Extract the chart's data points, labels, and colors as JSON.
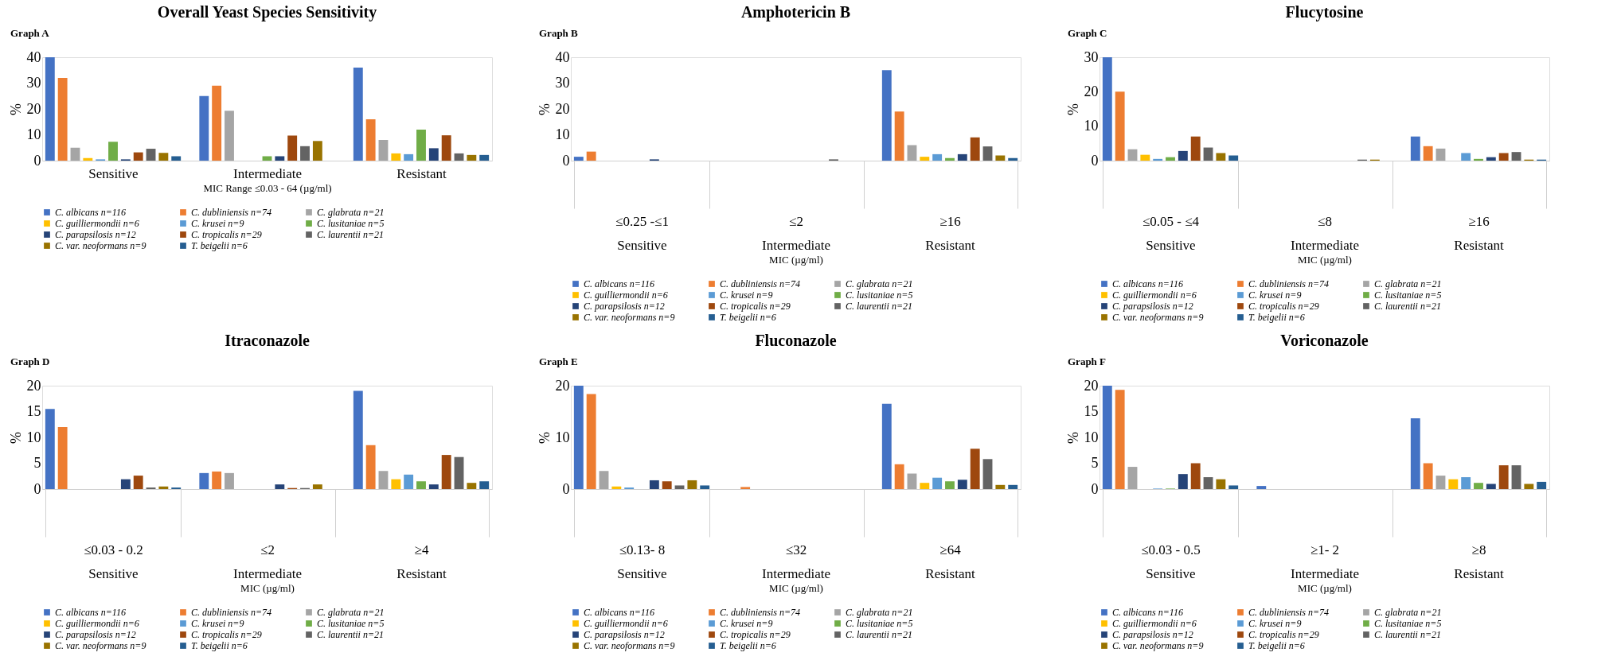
{
  "chart_data": [
    {
      "type": "bar",
      "title": "Overall Yeast Species Sensitivity",
      "annotations": [
        "Graph A"
      ],
      "xlabel": "MIC Range ≤0.03 - 64 (µg/ml)",
      "ylabel": "%",
      "categories": [
        "Sensitive",
        "Intermediate",
        "Resistant"
      ],
      "ylim": [
        0,
        40
      ],
      "yticks": [
        0,
        10,
        20,
        30,
        40
      ],
      "legend": "bottom",
      "series": [
        {
          "name": "C. albicans n=116",
          "color": "#4472c4",
          "values": [
            40,
            25,
            36
          ]
        },
        {
          "name": "C. dubliniensis n=74",
          "color": "#ed7d31",
          "values": [
            32,
            29,
            16
          ]
        },
        {
          "name": "C. glabrata n=21",
          "color": "#a5a5a5",
          "values": [
            5,
            19.3,
            8
          ]
        },
        {
          "name": "C. guilliermondii n=6",
          "color": "#ffc000",
          "values": [
            1,
            0,
            2.8
          ]
        },
        {
          "name": "C. krusei n=9",
          "color": "#5b9bd5",
          "values": [
            0.5,
            0,
            2.5
          ]
        },
        {
          "name": "C. lusitaniae n=5",
          "color": "#70ad47",
          "values": [
            7.3,
            1.7,
            12
          ]
        },
        {
          "name": "C. parapsilosis n=12",
          "color": "#264478",
          "values": [
            0.5,
            1.7,
            4.8
          ]
        },
        {
          "name": "C. tropicalis n=29",
          "color": "#9e480e",
          "values": [
            3.2,
            9.7,
            9.8
          ]
        },
        {
          "name": "C. laurentii n=21",
          "color": "#636363",
          "values": [
            4.6,
            5.6,
            2.8
          ]
        },
        {
          "name": "C. var. neoformans n=9",
          "color": "#997300",
          "values": [
            3,
            7.6,
            2.2
          ]
        },
        {
          "name": "T. beigelii n=6",
          "color": "#255e91",
          "values": [
            1.7,
            0,
            2.2
          ]
        }
      ]
    },
    {
      "type": "bar",
      "title": "Amphotericin B",
      "annotations": [
        "Graph B"
      ],
      "xlabel": "MIC (µg/ml)",
      "ylabel": "%",
      "categories": [
        "≤0.25 -≤1\nSensitive",
        "≤2\nIntermediate",
        "≥16\nResistant"
      ],
      "ylim": [
        0,
        40
      ],
      "yticks": [
        0,
        10,
        20,
        30,
        40
      ],
      "legend": "bottom",
      "series": [
        {
          "name": "C. albicans n=116",
          "color": "#4472c4",
          "values": [
            1.5,
            0,
            35
          ]
        },
        {
          "name": "C. dubliniensis n=74",
          "color": "#ed7d31",
          "values": [
            3.5,
            0,
            19
          ]
        },
        {
          "name": "C. glabrata n=21",
          "color": "#a5a5a5",
          "values": [
            0,
            0,
            6
          ]
        },
        {
          "name": "C. guilliermondii n=6",
          "color": "#ffc000",
          "values": [
            0,
            0,
            1.5
          ]
        },
        {
          "name": "C. krusei n=9",
          "color": "#5b9bd5",
          "values": [
            0,
            0,
            2.5
          ]
        },
        {
          "name": "C. lusitaniae n=5",
          "color": "#70ad47",
          "values": [
            0,
            0,
            1
          ]
        },
        {
          "name": "C. parapsilosis n=12",
          "color": "#264478",
          "values": [
            0.5,
            0,
            2.5
          ]
        },
        {
          "name": "C. tropicalis n=29",
          "color": "#9e480e",
          "values": [
            0,
            0,
            9
          ]
        },
        {
          "name": "C. laurentii n=21",
          "color": "#636363",
          "values": [
            0,
            0.5,
            5.5
          ]
        },
        {
          "name": "C. var. neoformans n=9",
          "color": "#997300",
          "values": [
            0,
            0,
            2
          ]
        },
        {
          "name": "T. beigelii n=6",
          "color": "#255e91",
          "values": [
            0,
            0,
            1
          ]
        }
      ]
    },
    {
      "type": "bar",
      "title": "Flucytosine",
      "annotations": [
        "Graph C"
      ],
      "xlabel": "MIC (µg/ml)",
      "ylabel": "%",
      "categories": [
        "≤0.05 - ≤4\nSensitive",
        "≤8\nIntermediate",
        "≥16\nResistant"
      ],
      "ylim": [
        0,
        30
      ],
      "yticks": [
        0,
        10,
        20,
        30
      ],
      "legend": "bottom",
      "series": [
        {
          "name": "C. albicans n=116",
          "color": "#4472c4",
          "values": [
            30,
            0,
            7
          ]
        },
        {
          "name": "C. dubliniensis n=74",
          "color": "#ed7d31",
          "values": [
            20,
            0,
            4.2
          ]
        },
        {
          "name": "C. glabrata n=21",
          "color": "#a5a5a5",
          "values": [
            3.3,
            0,
            3.5
          ]
        },
        {
          "name": "C. guilliermondii n=6",
          "color": "#ffc000",
          "values": [
            1.7,
            0,
            0
          ]
        },
        {
          "name": "C. krusei n=9",
          "color": "#5b9bd5",
          "values": [
            0.5,
            0,
            2.2
          ]
        },
        {
          "name": "C. lusitaniae n=5",
          "color": "#70ad47",
          "values": [
            1,
            0,
            0.5
          ]
        },
        {
          "name": "C. parapsilosis n=12",
          "color": "#264478",
          "values": [
            2.8,
            0,
            1
          ]
        },
        {
          "name": "C. tropicalis n=29",
          "color": "#9e480e",
          "values": [
            7,
            0,
            2.2
          ]
        },
        {
          "name": "C. laurentii n=21",
          "color": "#636363",
          "values": [
            3.8,
            0.3,
            2.5
          ]
        },
        {
          "name": "C. var. neoformans n=9",
          "color": "#997300",
          "values": [
            2.2,
            0.3,
            0.3
          ]
        },
        {
          "name": "T. beigelii n=6",
          "color": "#255e91",
          "values": [
            1.5,
            0,
            0.3
          ]
        }
      ]
    },
    {
      "type": "bar",
      "title": "Itraconazole",
      "annotations": [
        "Graph D"
      ],
      "xlabel": "MIC (µg/ml)",
      "ylabel": "%",
      "categories": [
        "≤0.03 - 0.2\nSensitive",
        "≤2\nIntermediate",
        "≥4\nResistant"
      ],
      "ylim": [
        0,
        20
      ],
      "yticks": [
        0,
        5,
        10,
        15,
        20
      ],
      "legend": "bottom",
      "series": [
        {
          "name": "C. albicans n=116",
          "color": "#4472c4",
          "values": [
            15.5,
            3.1,
            19
          ]
        },
        {
          "name": "C. dubliniensis n=74",
          "color": "#ed7d31",
          "values": [
            12,
            3.4,
            8.5
          ]
        },
        {
          "name": "C. glabrata n=21",
          "color": "#a5a5a5",
          "values": [
            0,
            3.1,
            3.5
          ]
        },
        {
          "name": "C. guilliermondii n=6",
          "color": "#ffc000",
          "values": [
            0,
            0,
            1.9
          ]
        },
        {
          "name": "C. krusei n=9",
          "color": "#5b9bd5",
          "values": [
            0,
            0,
            2.8
          ]
        },
        {
          "name": "C. lusitaniae n=5",
          "color": "#70ad47",
          "values": [
            0,
            0,
            1.5
          ]
        },
        {
          "name": "C. parapsilosis n=12",
          "color": "#264478",
          "values": [
            1.9,
            0.9,
            0.9
          ]
        },
        {
          "name": "C. tropicalis n=29",
          "color": "#9e480e",
          "values": [
            2.6,
            0.2,
            6.6
          ]
        },
        {
          "name": "C. laurentii n=21",
          "color": "#636363",
          "values": [
            0.3,
            0.2,
            6.2
          ]
        },
        {
          "name": "C. var. neoformans n=9",
          "color": "#997300",
          "values": [
            0.5,
            0.9,
            1.2
          ]
        },
        {
          "name": "T. beigelii n=6",
          "color": "#255e91",
          "values": [
            0.3,
            0,
            1.5
          ]
        }
      ]
    },
    {
      "type": "bar",
      "title": "Fluconazole",
      "annotations": [
        "Graph E"
      ],
      "xlabel": "MIC (µg/ml)",
      "ylabel": "%",
      "categories": [
        "≤0.13- 8\nSensitive",
        "≤32\nIntermediate",
        "≥64\nResistant"
      ],
      "ylim": [
        0,
        20
      ],
      "yticks": [
        0,
        10,
        20
      ],
      "legend": "bottom",
      "series": [
        {
          "name": "C. albicans n=116",
          "color": "#4472c4",
          "values": [
            20,
            0,
            16.5
          ]
        },
        {
          "name": "C. dubliniensis n=74",
          "color": "#ed7d31",
          "values": [
            18.4,
            0.4,
            4.8
          ]
        },
        {
          "name": "C. glabrata n=21",
          "color": "#a5a5a5",
          "values": [
            3.5,
            0,
            3
          ]
        },
        {
          "name": "C. guilliermondii n=6",
          "color": "#ffc000",
          "values": [
            0.5,
            0,
            1.2
          ]
        },
        {
          "name": "C. krusei n=9",
          "color": "#5b9bd5",
          "values": [
            0.3,
            0,
            2.2
          ]
        },
        {
          "name": "C. lusitaniae n=5",
          "color": "#70ad47",
          "values": [
            0,
            0,
            1.5
          ]
        },
        {
          "name": "C. parapsilosis n=12",
          "color": "#264478",
          "values": [
            1.7,
            0,
            1.8
          ]
        },
        {
          "name": "C. tropicalis n=29",
          "color": "#9e480e",
          "values": [
            1.5,
            0,
            7.8
          ]
        },
        {
          "name": "C. laurentii n=21",
          "color": "#636363",
          "values": [
            0.7,
            0,
            5.8
          ]
        },
        {
          "name": "C. var. neoformans n=9",
          "color": "#997300",
          "values": [
            1.7,
            0,
            0.8
          ]
        },
        {
          "name": "T. beigelii n=6",
          "color": "#255e91",
          "values": [
            0.7,
            0,
            0.8
          ]
        }
      ]
    },
    {
      "type": "bar",
      "title": "Voriconazole",
      "annotations": [
        "Graph F"
      ],
      "xlabel": "MIC (µg/ml)",
      "ylabel": "%",
      "categories": [
        "≤0.03 - 0.5\nSensitive",
        "≥1- 2\nIntermediate",
        "≥8\nResistant"
      ],
      "ylim": [
        0,
        20
      ],
      "yticks": [
        0,
        5,
        10,
        15,
        20
      ],
      "legend": "bottom",
      "series": [
        {
          "name": "C. albicans n=116",
          "color": "#4472c4",
          "values": [
            20,
            0.6,
            13.7
          ]
        },
        {
          "name": "C. dubliniensis n=74",
          "color": "#ed7d31",
          "values": [
            19.2,
            0,
            5
          ]
        },
        {
          "name": "C. glabrata n=21",
          "color": "#a5a5a5",
          "values": [
            4.3,
            0,
            2.6
          ]
        },
        {
          "name": "C. guilliermondii n=6",
          "color": "#ffc000",
          "values": [
            0,
            0,
            1.9
          ]
        },
        {
          "name": "C. krusei n=9",
          "color": "#5b9bd5",
          "values": [
            0.1,
            0,
            2.3
          ]
        },
        {
          "name": "C. lusitaniae n=5",
          "color": "#70ad47",
          "values": [
            0.1,
            0,
            1.2
          ]
        },
        {
          "name": "C. parapsilosis n=12",
          "color": "#264478",
          "values": [
            2.9,
            0,
            1
          ]
        },
        {
          "name": "C. tropicalis n=29",
          "color": "#9e480e",
          "values": [
            5,
            0,
            4.6
          ]
        },
        {
          "name": "C. laurentii n=21",
          "color": "#636363",
          "values": [
            2.3,
            0,
            4.6
          ]
        },
        {
          "name": "C. var. neoformans n=9",
          "color": "#997300",
          "values": [
            1.9,
            0,
            1
          ]
        },
        {
          "name": "T. beigelii n=6",
          "color": "#255e91",
          "values": [
            0.7,
            0,
            1.4
          ]
        }
      ]
    }
  ]
}
